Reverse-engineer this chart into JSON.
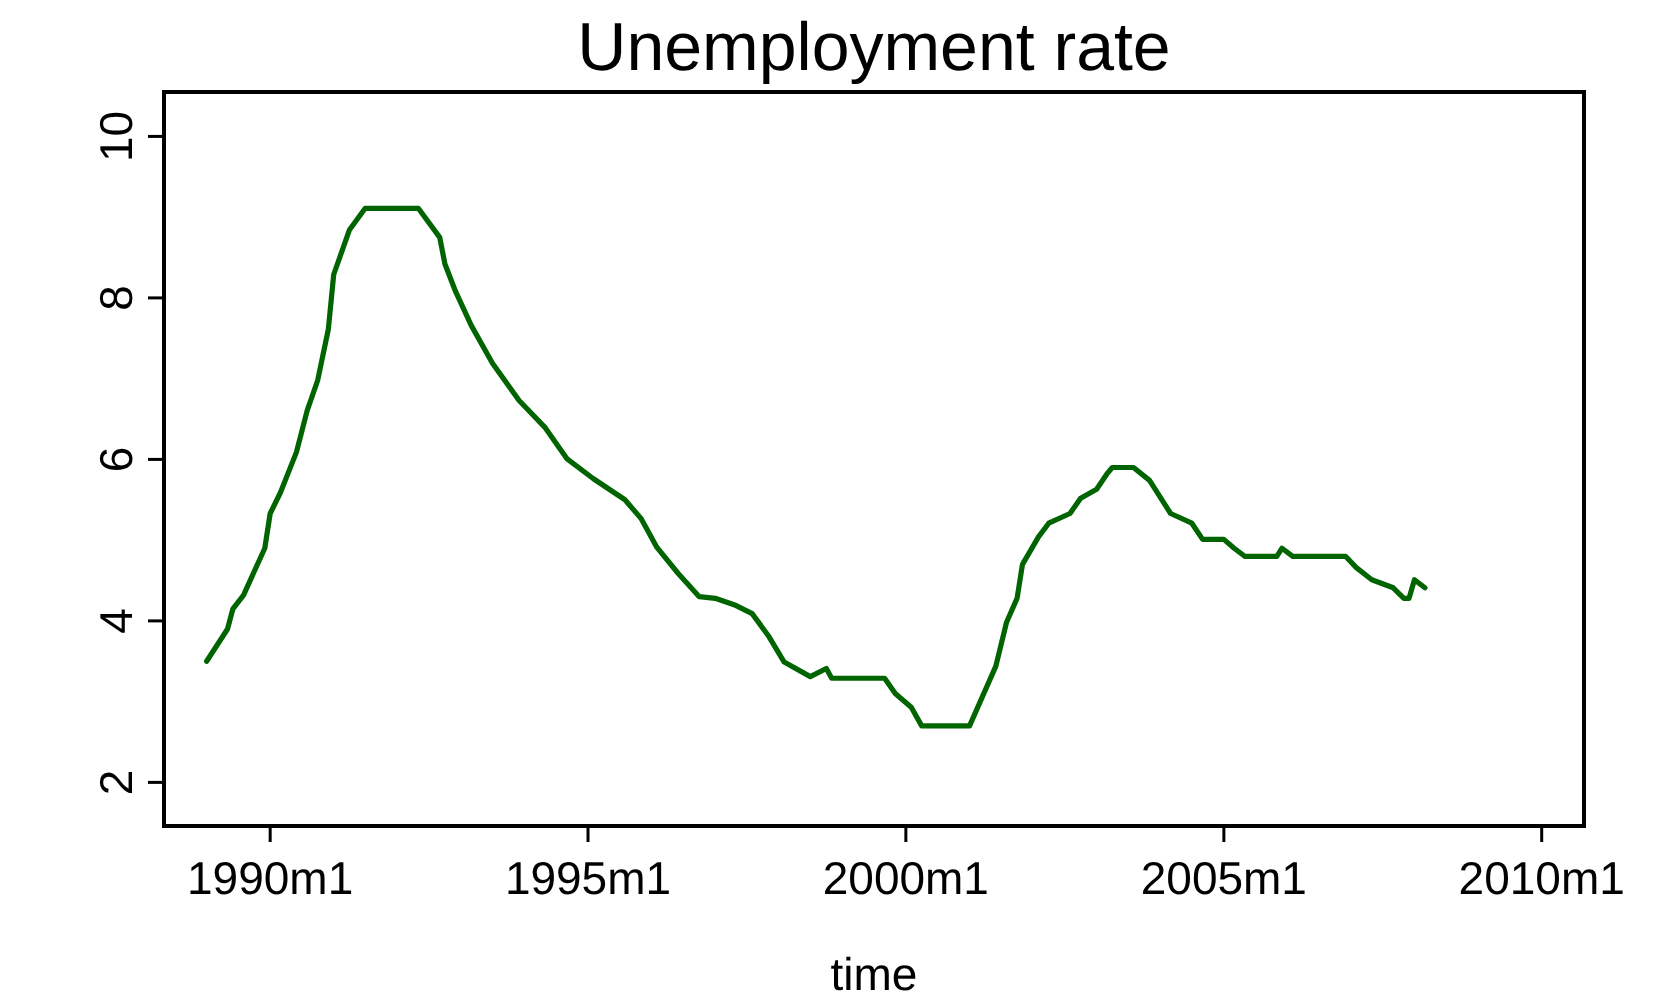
{
  "chart_data": {
    "type": "line",
    "title": "Unemployment rate",
    "xlabel": "time",
    "xlim": [
      "1988-05",
      "2010-09"
    ],
    "ylim": [
      1.46,
      10.55
    ],
    "xticks": [
      {
        "value": "1990-01",
        "label": "1990m1"
      },
      {
        "value": "1995-01",
        "label": "1995m1"
      },
      {
        "value": "2000-01",
        "label": "2000m1"
      },
      {
        "value": "2005-01",
        "label": "2005m1"
      },
      {
        "value": "2010-01",
        "label": "2010m1"
      }
    ],
    "yticks": [
      2,
      4,
      6,
      8,
      10
    ],
    "grid": false,
    "line_style": "solid",
    "series": [
      {
        "color": "#006400",
        "x": [
          "1989-01",
          "1989-05",
          "1989-06",
          "1989-08",
          "1989-12",
          "1990-01",
          "1990-03",
          "1990-06",
          "1990-08",
          "1990-10",
          "1990-12",
          "1991-01",
          "1991-04",
          "1991-07",
          "1992-05",
          "1992-09",
          "1992-10",
          "1992-12",
          "1993-03",
          "1993-07",
          "1993-12",
          "1994-05",
          "1994-09",
          "1995-02",
          "1995-08",
          "1995-11",
          "1996-02",
          "1996-06",
          "1996-10",
          "1997-01",
          "1997-05",
          "1997-08",
          "1997-11",
          "1998-02",
          "1998-07",
          "1998-10",
          "1998-11",
          "1999-09",
          "1999-11",
          "2000-02",
          "2000-04",
          "2001-01",
          "2001-06",
          "2001-08",
          "2001-10",
          "2001-11",
          "2002-02",
          "2002-04",
          "2002-08",
          "2002-10",
          "2003-01",
          "2003-03",
          "2003-04",
          "2003-08",
          "2003-11",
          "2004-03",
          "2004-07",
          "2004-09",
          "2005-01",
          "2005-03",
          "2005-05",
          "2005-11",
          "2005-12",
          "2006-02",
          "2006-12",
          "2007-02",
          "2007-05",
          "2007-09",
          "2007-11",
          "2007-12",
          "2008-01",
          "2008-03"
        ],
        "values": [
          3.5,
          3.9,
          4.15,
          4.32,
          4.9,
          5.33,
          5.59,
          6.09,
          6.6,
          6.98,
          7.61,
          8.29,
          8.84,
          9.11,
          9.11,
          8.75,
          8.42,
          8.08,
          7.66,
          7.19,
          6.73,
          6.39,
          6.01,
          5.76,
          5.5,
          5.27,
          4.91,
          4.59,
          4.3,
          4.28,
          4.19,
          4.09,
          3.82,
          3.49,
          3.31,
          3.41,
          3.29,
          3.29,
          3.1,
          2.93,
          2.7,
          2.7,
          3.44,
          3.98,
          4.28,
          4.7,
          5.04,
          5.21,
          5.33,
          5.52,
          5.63,
          5.82,
          5.9,
          5.9,
          5.74,
          5.33,
          5.21,
          5.01,
          5.01,
          4.9,
          4.8,
          4.8,
          4.9,
          4.8,
          4.8,
          4.66,
          4.51,
          4.41,
          4.28,
          4.28,
          4.51,
          4.41
        ]
      }
    ]
  }
}
